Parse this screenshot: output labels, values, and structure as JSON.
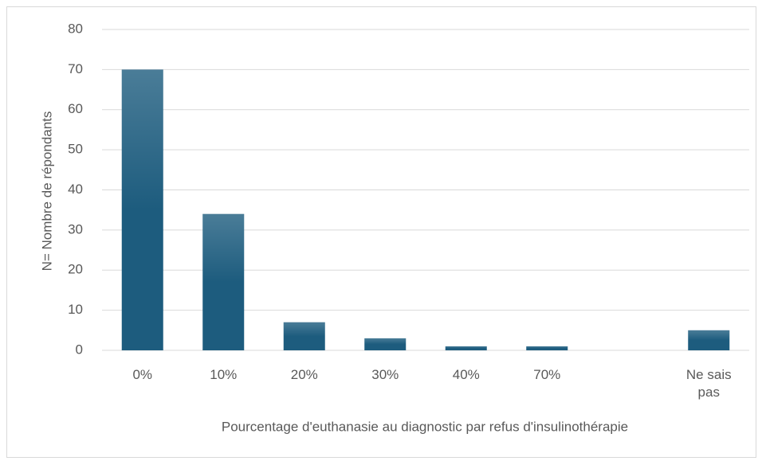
{
  "chart_data": {
    "type": "bar",
    "x_label": "Pourcentage d'euthanasie au diagnostic par refus d'insulinothérapie",
    "y_label": "N= Nombre de répondants",
    "categories": [
      "0%",
      "10%",
      "20%",
      "30%",
      "40%",
      "70%",
      null,
      "Ne sais pas"
    ],
    "values": [
      70,
      34,
      7,
      3,
      1,
      1,
      0,
      5
    ],
    "color": "#1d5c7e",
    "ylim": [
      0,
      80
    ],
    "yticks": [
      0,
      10,
      20,
      30,
      40,
      50,
      60,
      70,
      80
    ],
    "grid": true
  }
}
